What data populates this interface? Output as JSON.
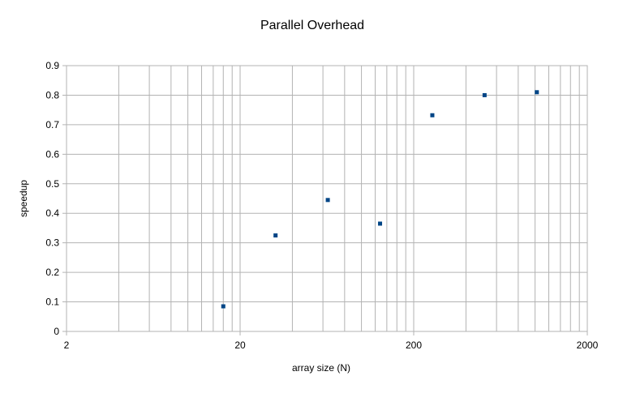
{
  "chart_data": {
    "type": "scatter",
    "title": "Parallel Overhead",
    "xlabel": "array size (N)",
    "ylabel": "speedup",
    "xscale": "log",
    "xlim": [
      2,
      2000
    ],
    "ylim": [
      0,
      0.9
    ],
    "xticks": [
      {
        "value": 2,
        "label": "2"
      },
      {
        "value": 20,
        "label": "20"
      },
      {
        "value": 200,
        "label": "200"
      },
      {
        "value": 2000,
        "label": "2000"
      }
    ],
    "yticks": [
      {
        "value": 0,
        "label": "0"
      },
      {
        "value": 0.1,
        "label": "0.1"
      },
      {
        "value": 0.2,
        "label": "0.2"
      },
      {
        "value": 0.3,
        "label": "0.3"
      },
      {
        "value": 0.4,
        "label": "0.4"
      },
      {
        "value": 0.5,
        "label": "0.5"
      },
      {
        "value": 0.6,
        "label": "0.6"
      },
      {
        "value": 0.7,
        "label": "0.7"
      },
      {
        "value": 0.8,
        "label": "0.8"
      },
      {
        "value": 0.9,
        "label": "0.9"
      }
    ],
    "grid": true,
    "legend": "none",
    "marker_color": "#004586",
    "grid_color": "#b3b3b3",
    "series": [
      {
        "points": [
          {
            "x": 16,
            "y": 0.085
          },
          {
            "x": 32,
            "y": 0.325
          },
          {
            "x": 64,
            "y": 0.445
          },
          {
            "x": 128,
            "y": 0.365
          },
          {
            "x": 256,
            "y": 0.732
          },
          {
            "x": 512,
            "y": 0.8
          },
          {
            "x": 1024,
            "y": 0.81
          }
        ]
      }
    ]
  }
}
